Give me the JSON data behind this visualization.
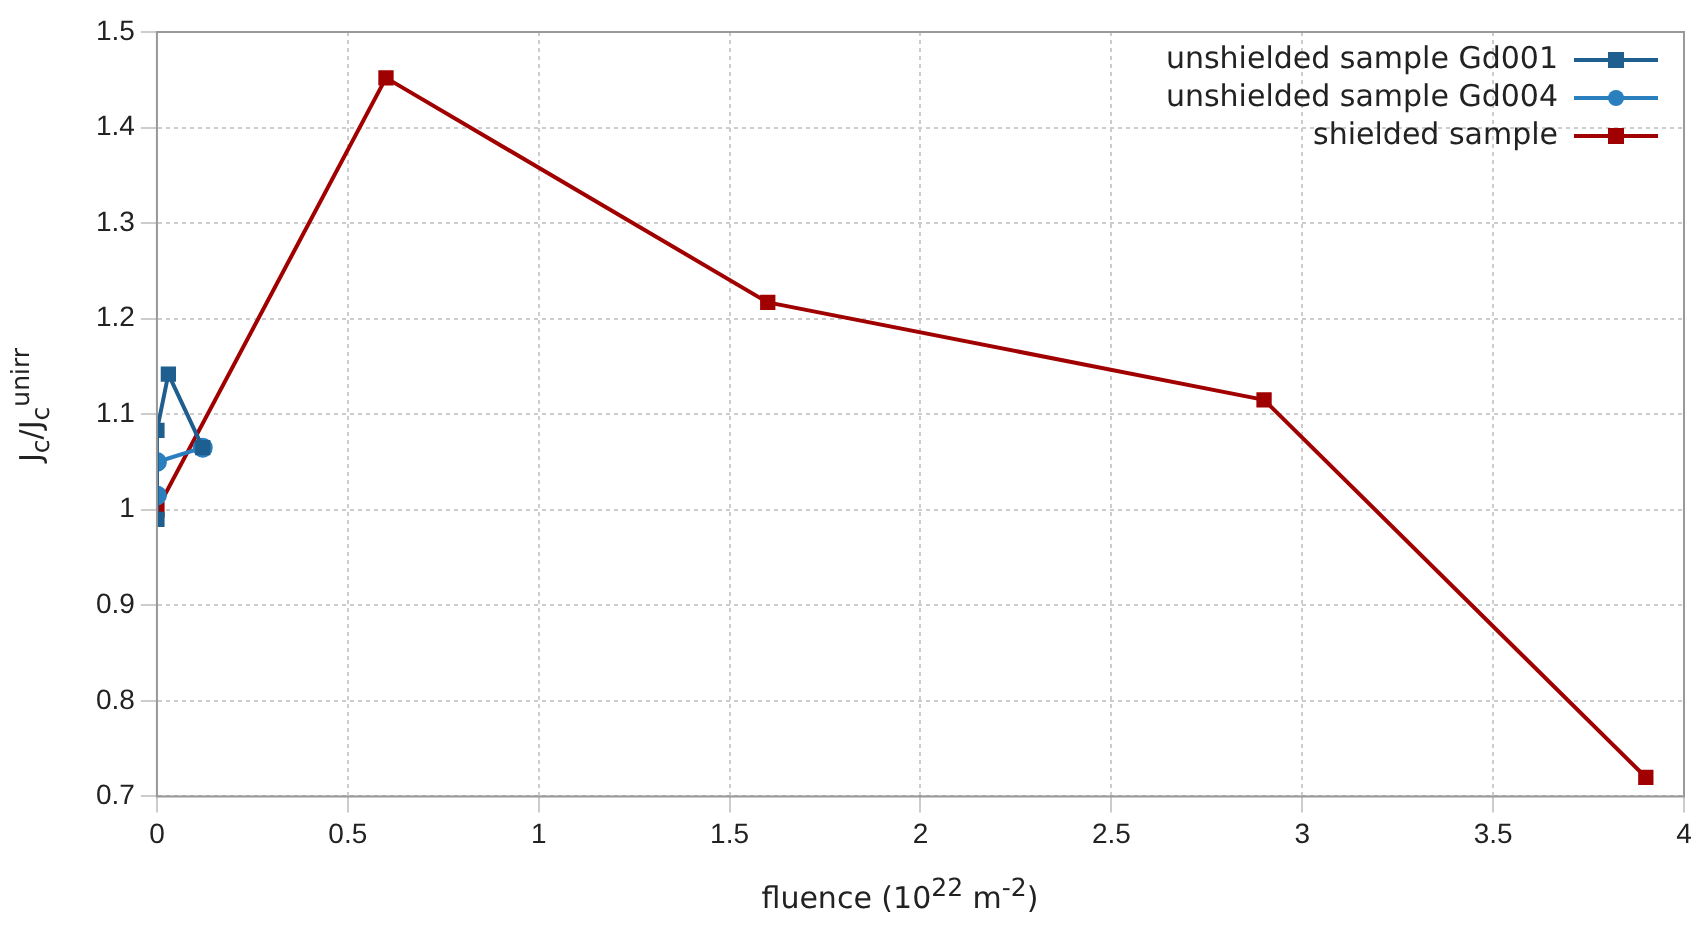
{
  "chart_data": {
    "type": "line",
    "xlabel": "fluence (10$^{22}$ m$^{-2}$)",
    "ylabel": "J$_{c}$/J$_{c}$$^{unirr}$",
    "xlim": [
      0,
      4
    ],
    "xticks": [
      0,
      0.5,
      1,
      1.5,
      2,
      2.5,
      3,
      3.5,
      4
    ],
    "ylim": [
      0.7,
      1.5
    ],
    "yticks": [
      0.7,
      0.8,
      0.9,
      1,
      1.1,
      1.2,
      1.3,
      1.4,
      1.5
    ],
    "grid": true,
    "legend": "top right",
    "line_style": "solid",
    "series": [
      {
        "name": "unshielded sample Gd001",
        "color": "#1f5f8f",
        "marker": "square",
        "x": [
          0,
          0,
          0.03,
          0.12
        ],
        "values": [
          0.99,
          1.083,
          1.142,
          1.065
        ]
      },
      {
        "name": "unshielded sample Gd004",
        "color": "#2a7fbf",
        "marker": "circle",
        "x": [
          0,
          0,
          0.12
        ],
        "values": [
          1.015,
          1.05,
          1.065
        ]
      },
      {
        "name": "shielded sample",
        "color": "#a00000",
        "marker": "square",
        "x": [
          0,
          0.6,
          1.6,
          2.9,
          3.9
        ],
        "values": [
          1.0,
          1.452,
          1.217,
          1.115,
          0.72
        ]
      }
    ]
  }
}
